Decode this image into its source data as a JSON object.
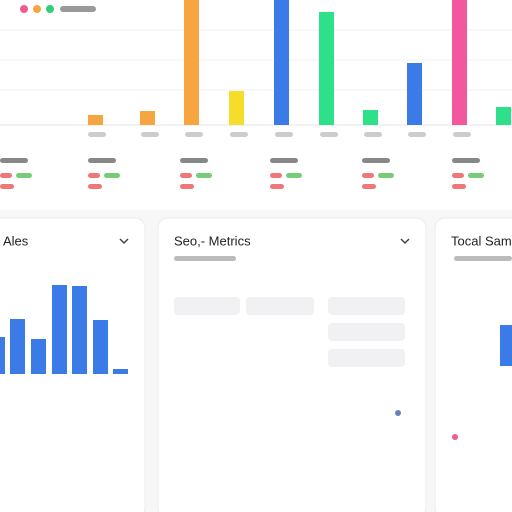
{
  "top_chart": {
    "type": "bar",
    "ylim": [
      0,
      125
    ],
    "values": [
      10,
      14,
      125,
      34,
      125,
      113,
      15,
      62,
      125,
      18
    ],
    "colors": [
      "#f7a541",
      "#f7a541",
      "#f7a541",
      "#f5dd2a",
      "#3b7be8",
      "#2fe08a",
      "#2fe08a",
      "#3b7be8",
      "#f2589e",
      "#2fe08a"
    ]
  },
  "panels": [
    {
      "title": "Ales",
      "chart": {
        "type": "bar",
        "ylim": [
          0,
          100
        ],
        "color": "#3b7be8",
        "values": [
          37,
          55,
          35,
          89,
          88,
          54,
          5
        ]
      }
    },
    {
      "title": "Seo,- Metrics"
    },
    {
      "title": "Tocal Sams",
      "chart": {
        "type": "bar",
        "ylim": [
          0,
          100
        ],
        "color": "#3b7be8",
        "values": [
          41
        ]
      }
    }
  ]
}
